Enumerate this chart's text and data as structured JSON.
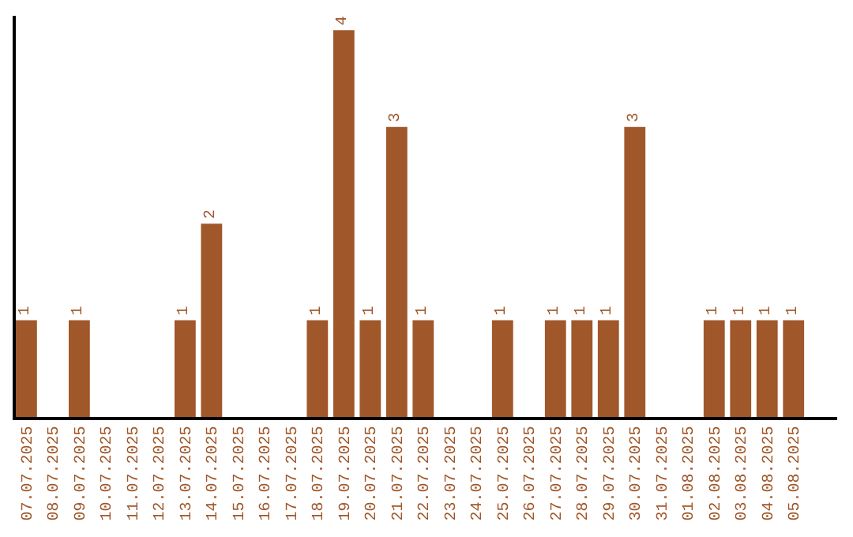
{
  "chart_data": {
    "type": "bar",
    "categories": [
      "07.07.2025",
      "08.07.2025",
      "09.07.2025",
      "10.07.2025",
      "11.07.2025",
      "12.07.2025",
      "13.07.2025",
      "14.07.2025",
      "15.07.2025",
      "16.07.2025",
      "17.07.2025",
      "18.07.2025",
      "19.07.2025",
      "20.07.2025",
      "21.07.2025",
      "22.07.2025",
      "23.07.2025",
      "24.07.2025",
      "25.07.2025",
      "26.07.2025",
      "27.07.2025",
      "28.07.2025",
      "29.07.2025",
      "30.07.2025",
      "31.07.2025",
      "01.08.2025",
      "02.08.2025",
      "03.08.2025",
      "04.08.2025",
      "05.08.2025"
    ],
    "values": [
      1,
      0,
      1,
      0,
      0,
      0,
      1,
      2,
      0,
      0,
      0,
      1,
      4,
      1,
      3,
      1,
      0,
      0,
      1,
      0,
      1,
      1,
      1,
      3,
      0,
      0,
      1,
      1,
      1,
      1
    ],
    "value_labels": [
      "1",
      null,
      "1",
      null,
      null,
      null,
      "1",
      "2",
      null,
      null,
      null,
      "1",
      "4",
      "1",
      "3",
      "1",
      null,
      null,
      "1",
      null,
      "1",
      "1",
      "1",
      "3",
      null,
      null,
      "1",
      "1",
      "1",
      "1"
    ],
    "color": "#a0572a",
    "ylim": [
      0,
      4.15
    ],
    "tick_labels": "x"
  }
}
